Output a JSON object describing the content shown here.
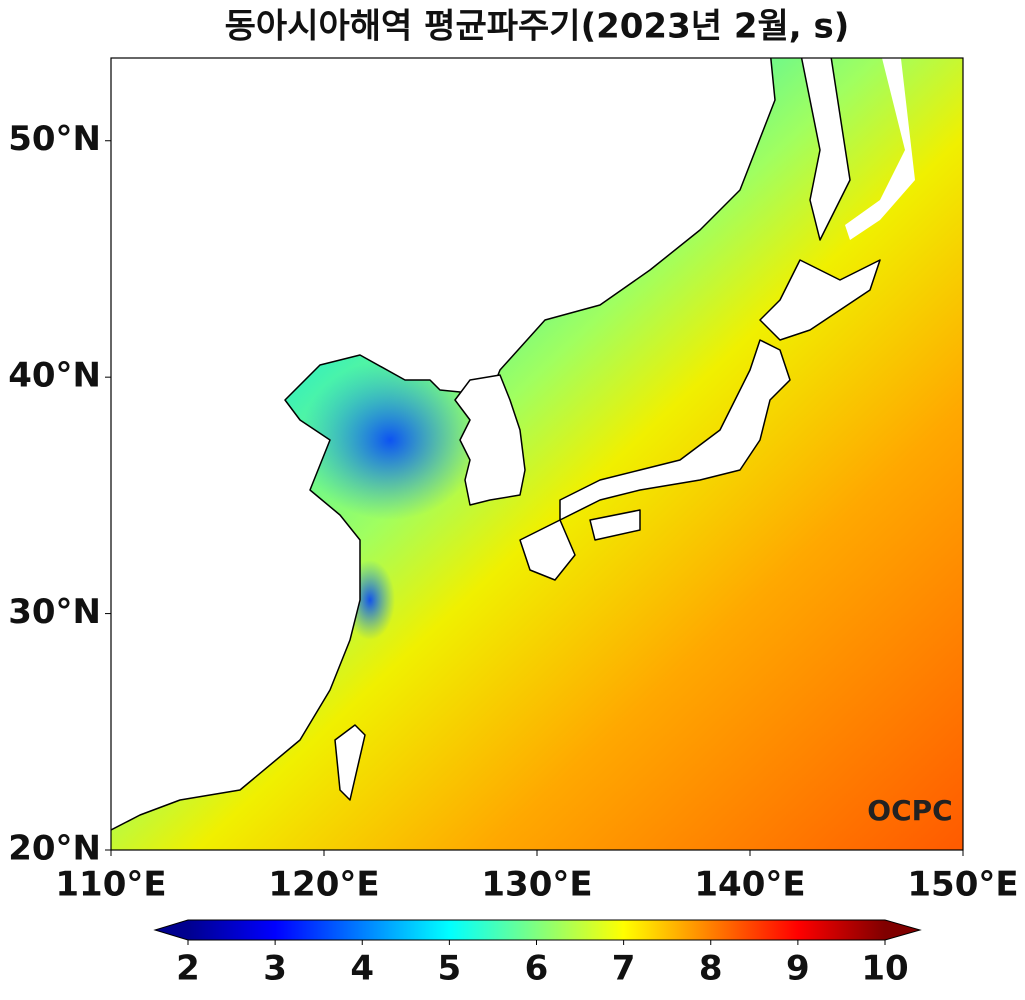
{
  "title": "동아시아해역 평균파주기(2023년 2월, s)",
  "map": {
    "xlim": [
      110,
      150
    ],
    "ylim": [
      20,
      53.5
    ],
    "xticks": [
      {
        "value": 110,
        "label": "110°E"
      },
      {
        "value": 120,
        "label": "120°E"
      },
      {
        "value": 130,
        "label": "130°E"
      },
      {
        "value": 140,
        "label": "140°E"
      },
      {
        "value": 150,
        "label": "150°E"
      }
    ],
    "yticks": [
      {
        "value": 20,
        "label": "20°N"
      },
      {
        "value": 30,
        "label": "30°N"
      },
      {
        "value": 40,
        "label": "40°N"
      },
      {
        "value": 50,
        "label": "50°N"
      }
    ]
  },
  "colorbar": {
    "lim": [
      2,
      10
    ],
    "ticks": [
      2,
      3,
      4,
      5,
      6,
      7,
      8,
      9,
      10
    ]
  },
  "logo": "OCPC"
}
